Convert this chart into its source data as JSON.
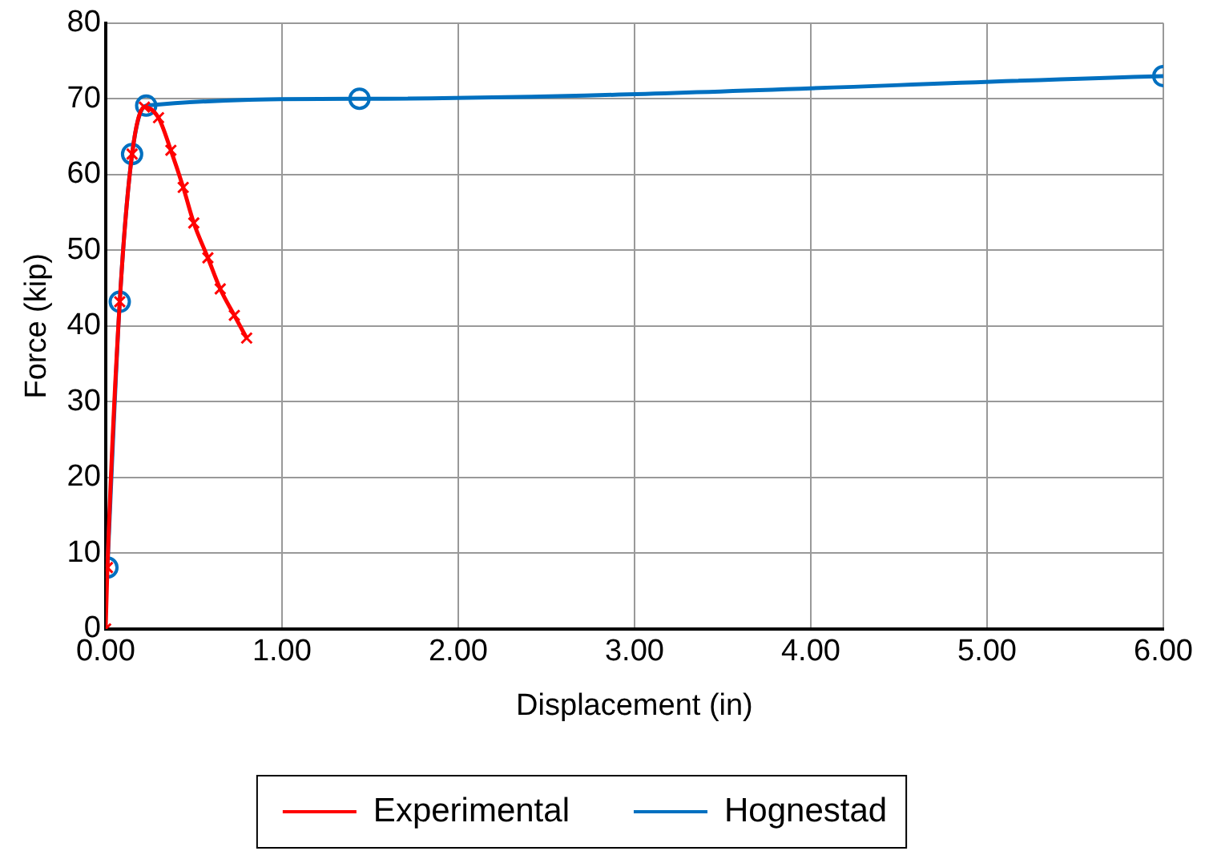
{
  "chart_data": {
    "type": "line",
    "xlabel": "Displacement (in)",
    "ylabel": "Force (kip)",
    "xlim": [
      0,
      6
    ],
    "xticks": [
      {
        "value": 0,
        "label": "0.00"
      },
      {
        "value": 1,
        "label": "1.00"
      },
      {
        "value": 2,
        "label": "2.00"
      },
      {
        "value": 3,
        "label": "3.00"
      },
      {
        "value": 4,
        "label": "4.00"
      },
      {
        "value": 5,
        "label": "5.00"
      },
      {
        "value": 6,
        "label": "6.00"
      }
    ],
    "ylim": [
      0,
      80
    ],
    "yticks": [
      0,
      10,
      20,
      30,
      40,
      50,
      60,
      70,
      80
    ],
    "grid": true,
    "legend": "bottom",
    "series": [
      {
        "name": "Experimental",
        "color": "#ff0000",
        "marker": "cross",
        "x": [
          0,
          0.01,
          0.08,
          0.15,
          0.22,
          0.3,
          0.37,
          0.44,
          0.5,
          0.58,
          0.65,
          0.73,
          0.8
        ],
        "values": [
          0,
          8.1,
          43.2,
          62.7,
          68.9,
          67.5,
          63.2,
          58.3,
          53.6,
          49.0,
          44.9,
          41.4,
          38.4
        ]
      },
      {
        "name": "Hognestad",
        "color": "#0070c0",
        "marker": "circle",
        "x": [
          0.01,
          0.08,
          0.15,
          0.23,
          1.44,
          6.0
        ],
        "values": [
          8.1,
          43.2,
          62.7,
          69.1,
          70,
          73
        ]
      }
    ]
  }
}
